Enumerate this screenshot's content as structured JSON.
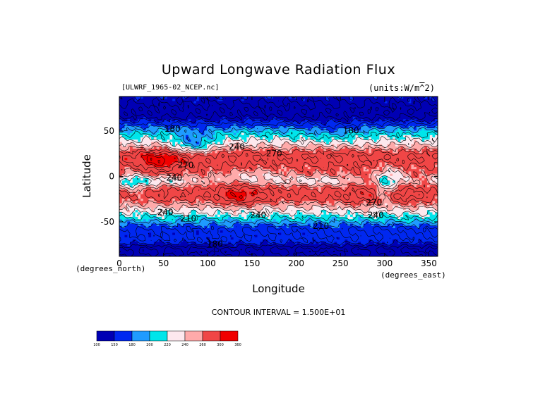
{
  "chart_data": {
    "type": "heatmap",
    "title": "Upward Longwave Radiation Flux",
    "subtitle_left": "[ULWRF_1965-02_NCEP.nc]",
    "subtitle_right": "(units:W/m^2)",
    "xlabel": "Longitude",
    "ylabel": "Latitude",
    "x_units": "(degrees_east)",
    "y_units": "(degrees_north)",
    "xlim": [
      0,
      360
    ],
    "ylim": [
      -90,
      90
    ],
    "x_ticks": [
      0,
      50,
      100,
      150,
      200,
      250,
      300,
      350
    ],
    "y_ticks": [
      -50,
      0,
      50
    ],
    "contour_interval": "CONTOUR INTERVAL = 1.500E+01",
    "contour_labels": [
      {
        "text": "180",
        "lon": 60,
        "lat": 52
      },
      {
        "text": "180",
        "lon": 262,
        "lat": 50
      },
      {
        "text": "240",
        "lon": 133,
        "lat": 32
      },
      {
        "text": "270",
        "lon": 175,
        "lat": 25
      },
      {
        "text": "270",
        "lon": 75,
        "lat": 12
      },
      {
        "text": "240",
        "lon": 62,
        "lat": -2
      },
      {
        "text": "240",
        "lon": 52,
        "lat": -40
      },
      {
        "text": "210",
        "lon": 78,
        "lat": -47
      },
      {
        "text": "240",
        "lon": 157,
        "lat": -43
      },
      {
        "text": "210",
        "lon": 228,
        "lat": -55
      },
      {
        "text": "180",
        "lon": 108,
        "lat": -75
      },
      {
        "text": "270",
        "lon": 288,
        "lat": -29
      },
      {
        "text": "240",
        "lon": 290,
        "lat": -43
      }
    ],
    "colorbar": {
      "levels": [
        100,
        150,
        180,
        200,
        220,
        240,
        260,
        300,
        360
      ],
      "labels": [
        "100",
        "150",
        "180",
        "200",
        "220",
        "240",
        "260",
        "300",
        "360"
      ],
      "colors": [
        "#0000b4",
        "#0028f0",
        "#1f9bff",
        "#00e5ea",
        "#fde8ee",
        "#ffaaaa",
        "#f04646",
        "#f00000"
      ]
    }
  }
}
